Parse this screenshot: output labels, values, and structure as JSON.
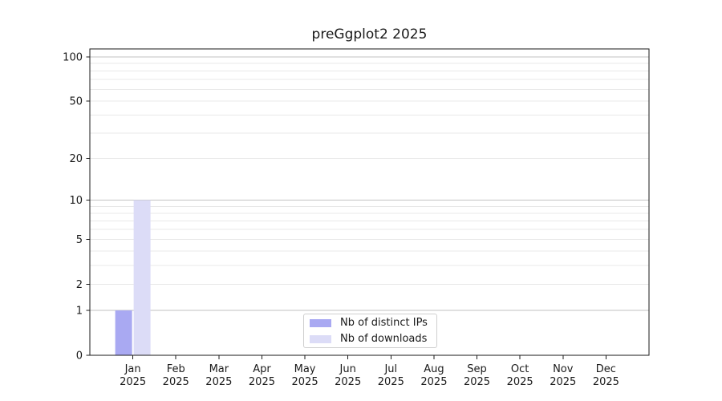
{
  "chart_data": {
    "type": "bar",
    "title": "preGgplot2 2025",
    "categories": [
      "Jan",
      "Feb",
      "Mar",
      "Apr",
      "May",
      "Jun",
      "Jul",
      "Aug",
      "Sep",
      "Oct",
      "Nov",
      "Dec"
    ],
    "category_year": "2025",
    "xlabel": "",
    "ylabel": "",
    "y_axis": {
      "scale": "log1p",
      "ticks": [
        0,
        1,
        2,
        5,
        10,
        20,
        50,
        100
      ],
      "major_grid": [
        1,
        10,
        100
      ],
      "minor_grid": [
        2,
        3,
        4,
        5,
        6,
        7,
        8,
        9,
        20,
        30,
        40,
        50,
        60,
        70,
        80,
        90
      ],
      "ylim": [
        0,
        113
      ]
    },
    "series": [
      {
        "name": "Nb of distinct IPs",
        "color": "#a9a9f2",
        "values": [
          1,
          0,
          0,
          0,
          0,
          0,
          0,
          0,
          0,
          0,
          0,
          0
        ]
      },
      {
        "name": "Nb of downloads",
        "color": "#dcdcf7",
        "values": [
          10,
          0,
          0,
          0,
          0,
          0,
          0,
          0,
          0,
          0,
          0,
          0
        ]
      }
    ],
    "legend": {
      "position": "bottom-center"
    },
    "grid": true,
    "colors": {
      "grid_minor": "#e8e8e8",
      "grid_major": "#c2c2c2",
      "spine": "#1a1a1a",
      "text": "#1a1a1a",
      "background": "#ffffff"
    }
  }
}
